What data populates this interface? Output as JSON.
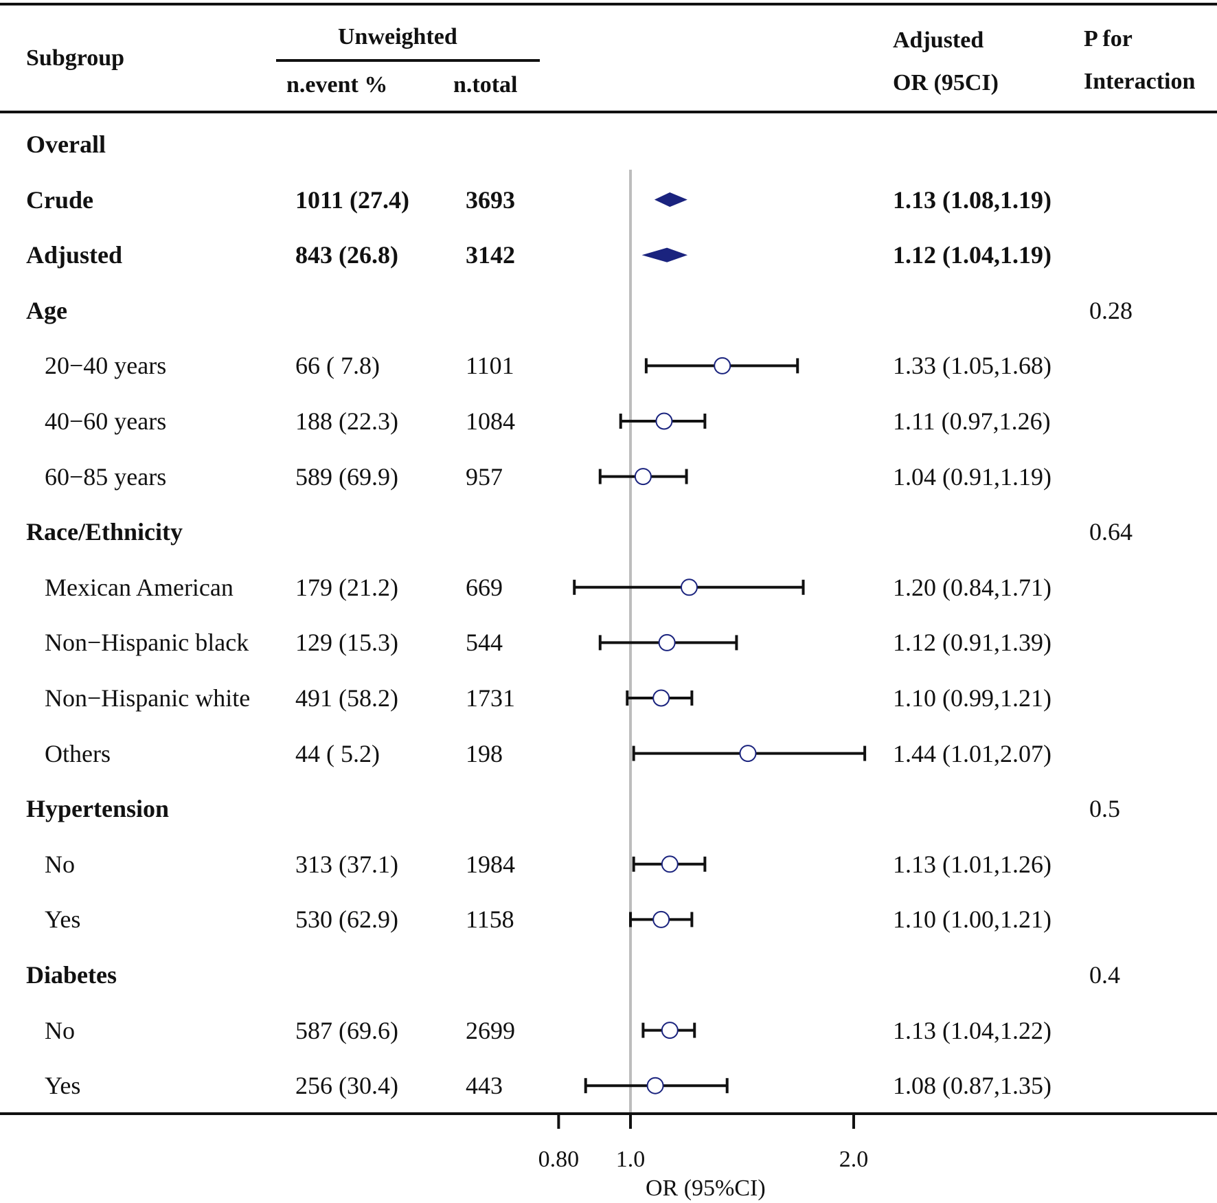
{
  "header": {
    "subgroup": "Subgroup",
    "unweighted": "Unweighted",
    "n_event": "n.event %",
    "n_total": "n.total",
    "or_line1": "Adjusted",
    "or_line2": "OR (95CI)",
    "p_line1": "P for",
    "p_line2": "Interaction"
  },
  "rows": [
    {
      "label": "Overall",
      "kind": "group",
      "n_event": "",
      "n_total": "",
      "or_text": "",
      "p": ""
    },
    {
      "label": "Crude",
      "kind": "summary",
      "n_event": "1011 (27.4)",
      "n_total": "3693",
      "or_text": "1.13 (1.08,1.19)",
      "p": ""
    },
    {
      "label": "Adjusted",
      "kind": "summary",
      "n_event": "843 (26.8)",
      "n_total": "3142",
      "or_text": "1.12 (1.04,1.19)",
      "p": ""
    },
    {
      "label": "Age",
      "kind": "group",
      "n_event": "",
      "n_total": "",
      "or_text": "",
      "p": "0.28"
    },
    {
      "label": "20−40 years",
      "kind": "item",
      "n_event": "66 ( 7.8)",
      "n_total": "1101",
      "or_text": "1.33 (1.05,1.68)",
      "p": ""
    },
    {
      "label": "40−60 years",
      "kind": "item",
      "n_event": "188 (22.3)",
      "n_total": "1084",
      "or_text": "1.11 (0.97,1.26)",
      "p": ""
    },
    {
      "label": "60−85 years",
      "kind": "item",
      "n_event": "589 (69.9)",
      "n_total": "957",
      "or_text": "1.04 (0.91,1.19)",
      "p": ""
    },
    {
      "label": "Race/Ethnicity",
      "kind": "group",
      "n_event": "",
      "n_total": "",
      "or_text": "",
      "p": "0.64"
    },
    {
      "label": "Mexican American",
      "kind": "item",
      "n_event": "179 (21.2)",
      "n_total": "669",
      "or_text": "1.20 (0.84,1.71)",
      "p": ""
    },
    {
      "label": "Non−Hispanic black",
      "kind": "item",
      "n_event": "129 (15.3)",
      "n_total": "544",
      "or_text": "1.12 (0.91,1.39)",
      "p": ""
    },
    {
      "label": "Non−Hispanic white",
      "kind": "item",
      "n_event": "491 (58.2)",
      "n_total": "1731",
      "or_text": "1.10 (0.99,1.21)",
      "p": ""
    },
    {
      "label": "Others",
      "kind": "item",
      "n_event": "44 ( 5.2)",
      "n_total": "198",
      "or_text": "1.44 (1.01,2.07)",
      "p": ""
    },
    {
      "label": "Hypertension",
      "kind": "group",
      "n_event": "",
      "n_total": "",
      "or_text": "",
      "p": "0.5"
    },
    {
      "label": "No",
      "kind": "item",
      "n_event": "313 (37.1)",
      "n_total": "1984",
      "or_text": "1.13 (1.01,1.26)",
      "p": ""
    },
    {
      "label": "Yes",
      "kind": "item",
      "n_event": "530 (62.9)",
      "n_total": "1158",
      "or_text": "1.10 (1.00,1.21)",
      "p": ""
    },
    {
      "label": "Diabetes",
      "kind": "group",
      "n_event": "",
      "n_total": "",
      "or_text": "",
      "p": "0.4"
    },
    {
      "label": "No",
      "kind": "item",
      "n_event": "587 (69.6)",
      "n_total": "2699",
      "or_text": "1.13 (1.04,1.22)",
      "p": ""
    },
    {
      "label": "Yes",
      "kind": "item",
      "n_event": "256 (30.4)",
      "n_total": "443",
      "or_text": "1.08 (0.87,1.35)",
      "p": ""
    }
  ],
  "chart_data": {
    "type": "forest",
    "xlabel": "OR (95%CI)",
    "xscale": "log",
    "xlim": [
      0.66,
      2.1
    ],
    "ticks": [
      0.8,
      1.0,
      2.0
    ],
    "tick_labels": [
      "0.80",
      "1.0",
      "2.0"
    ],
    "reference_line": 1.0,
    "summary_color": "#1a237e",
    "point_color": "#1a237e",
    "points": [
      {
        "label": "Crude",
        "or": 1.13,
        "lo": 1.08,
        "hi": 1.19,
        "shape": "diamond"
      },
      {
        "label": "Adjusted",
        "or": 1.12,
        "lo": 1.04,
        "hi": 1.19,
        "shape": "diamond"
      },
      {
        "label": "20−40 years",
        "or": 1.33,
        "lo": 1.05,
        "hi": 1.68,
        "shape": "circle"
      },
      {
        "label": "40−60 years",
        "or": 1.11,
        "lo": 0.97,
        "hi": 1.26,
        "shape": "circle"
      },
      {
        "label": "60−85 years",
        "or": 1.04,
        "lo": 0.91,
        "hi": 1.19,
        "shape": "circle"
      },
      {
        "label": "Mexican American",
        "or": 1.2,
        "lo": 0.84,
        "hi": 1.71,
        "shape": "circle"
      },
      {
        "label": "Non−Hispanic black",
        "or": 1.12,
        "lo": 0.91,
        "hi": 1.39,
        "shape": "circle"
      },
      {
        "label": "Non−Hispanic white",
        "or": 1.1,
        "lo": 0.99,
        "hi": 1.21,
        "shape": "circle"
      },
      {
        "label": "Others",
        "or": 1.44,
        "lo": 1.01,
        "hi": 2.07,
        "shape": "circle"
      },
      {
        "label": "No",
        "or": 1.13,
        "lo": 1.01,
        "hi": 1.26,
        "shape": "circle"
      },
      {
        "label": "Yes",
        "or": 1.1,
        "lo": 1.0,
        "hi": 1.21,
        "shape": "circle"
      },
      {
        "label": "No",
        "or": 1.13,
        "lo": 1.04,
        "hi": 1.22,
        "shape": "circle"
      },
      {
        "label": "Yes",
        "or": 1.08,
        "lo": 0.87,
        "hi": 1.35,
        "shape": "circle"
      }
    ]
  }
}
